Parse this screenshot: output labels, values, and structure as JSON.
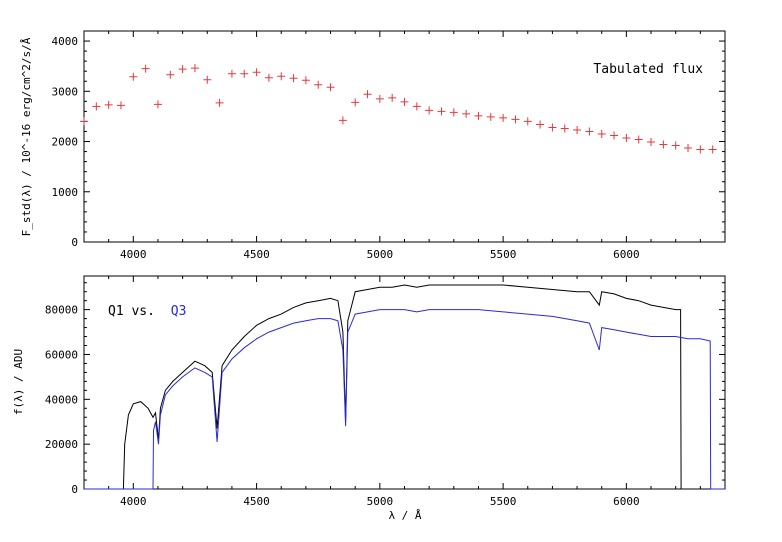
{
  "chart_data": [
    {
      "type": "scatter",
      "name": "top-panel",
      "ylabel": "F_std(λ) / 10^-16 erg/cm^2/s/Å",
      "xlabel": "",
      "xlim": [
        3800,
        6400
      ],
      "ylim": [
        0,
        4200
      ],
      "x_ticks": [
        "4000",
        "4500",
        "5000",
        "5500",
        "6000"
      ],
      "y_ticks": [
        "0",
        "1000",
        "2000",
        "3000",
        "4000"
      ],
      "annotation": "Tabulated flux",
      "marker": "+",
      "color": "#e8383b",
      "x": [
        3800,
        3850,
        3900,
        3950,
        4000,
        4050,
        4100,
        4150,
        4200,
        4250,
        4300,
        4350,
        4400,
        4450,
        4500,
        4550,
        4600,
        4650,
        4700,
        4750,
        4800,
        4850,
        4900,
        4950,
        5000,
        5050,
        5100,
        5150,
        5200,
        5250,
        5300,
        5350,
        5400,
        5450,
        5500,
        5550,
        5600,
        5650,
        5700,
        5750,
        5800,
        5850,
        5900,
        5950,
        6000,
        6050,
        6100,
        6150,
        6200,
        6250,
        6300,
        6350
      ],
      "y": [
        2400,
        2700,
        2730,
        2720,
        3290,
        3450,
        2740,
        3330,
        3440,
        3460,
        3230,
        2770,
        3350,
        3350,
        3380,
        3270,
        3300,
        3260,
        3220,
        3130,
        3080,
        2420,
        2780,
        2940,
        2850,
        2870,
        2790,
        2700,
        2620,
        2600,
        2580,
        2550,
        2510,
        2490,
        2470,
        2440,
        2400,
        2340,
        2280,
        2260,
        2230,
        2200,
        2150,
        2120,
        2070,
        2040,
        1990,
        1940,
        1920,
        1870,
        1840,
        1840
      ]
    },
    {
      "type": "line",
      "name": "bottom-panel",
      "ylabel": "f(λ) / ADU",
      "xlabel": "λ / Å",
      "xlim": [
        3800,
        6400
      ],
      "ylim": [
        0,
        95000
      ],
      "x_ticks": [
        "4000",
        "4500",
        "5000",
        "5500",
        "6000"
      ],
      "y_ticks": [
        "0",
        "20000",
        "40000",
        "60000",
        "80000"
      ],
      "annotation_prefix": "Q1 vs.",
      "annotation_suffix": "Q3",
      "series": [
        {
          "name": "Q1",
          "color": "#000000",
          "x": [
            3800,
            3960,
            3965,
            3980,
            4000,
            4030,
            4060,
            4080,
            4090,
            4102,
            4110,
            4130,
            4160,
            4200,
            4250,
            4290,
            4320,
            4340,
            4360,
            4400,
            4450,
            4500,
            4550,
            4600,
            4650,
            4700,
            4750,
            4800,
            4830,
            4850,
            4861,
            4870,
            4900,
            4950,
            5000,
            5050,
            5100,
            5150,
            5200,
            5300,
            5400,
            5500,
            5600,
            5700,
            5800,
            5850,
            5890,
            5900,
            5950,
            6000,
            6050,
            6100,
            6150,
            6200,
            6220,
            6222,
            6400
          ],
          "y": [
            0,
            0,
            20000,
            33000,
            38000,
            39000,
            36000,
            32000,
            34000,
            22000,
            36000,
            44000,
            48000,
            52000,
            57000,
            55000,
            52000,
            27000,
            55000,
            62000,
            68000,
            73000,
            76000,
            78000,
            81000,
            83000,
            84000,
            85000,
            84000,
            70000,
            30000,
            75000,
            88000,
            89000,
            90000,
            90000,
            91000,
            90000,
            91000,
            91000,
            91000,
            91000,
            90000,
            89000,
            88000,
            88000,
            82000,
            88000,
            87000,
            85000,
            84000,
            82000,
            81000,
            80000,
            80000,
            0,
            0
          ]
        },
        {
          "name": "Q3",
          "color": "#2a2ad8",
          "x": [
            3800,
            4080,
            4082,
            4090,
            4102,
            4110,
            4130,
            4160,
            4200,
            4250,
            4290,
            4320,
            4340,
            4360,
            4400,
            4450,
            4500,
            4550,
            4600,
            4650,
            4700,
            4750,
            4800,
            4830,
            4850,
            4861,
            4870,
            4900,
            4950,
            5000,
            5050,
            5100,
            5150,
            5200,
            5300,
            5400,
            5500,
            5600,
            5700,
            5800,
            5850,
            5890,
            5900,
            5950,
            6000,
            6050,
            6100,
            6150,
            6200,
            6250,
            6300,
            6340,
            6342,
            6400
          ],
          "y": [
            0,
            0,
            26000,
            30000,
            20000,
            33000,
            42000,
            46000,
            50000,
            54000,
            52000,
            50000,
            21000,
            52000,
            58000,
            63000,
            67000,
            70000,
            72000,
            74000,
            75000,
            76000,
            76000,
            75000,
            62000,
            28000,
            70000,
            78000,
            79000,
            80000,
            80000,
            80000,
            79000,
            80000,
            80000,
            80000,
            79000,
            78000,
            77000,
            75000,
            74000,
            62000,
            72000,
            71000,
            70000,
            69000,
            68000,
            68000,
            68000,
            67000,
            67000,
            66000,
            0,
            0
          ]
        }
      ]
    }
  ]
}
